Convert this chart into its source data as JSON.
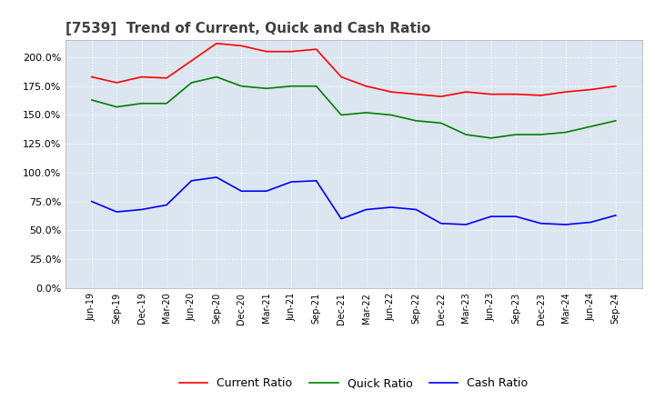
{
  "title": "[7539]  Trend of Current, Quick and Cash Ratio",
  "title_fontsize": 11,
  "ylim": [
    0.0,
    215.0
  ],
  "yticks": [
    0.0,
    25.0,
    50.0,
    75.0,
    100.0,
    125.0,
    150.0,
    175.0,
    200.0
  ],
  "background_color": "#ffffff",
  "plot_bg_color": "#dce6f0",
  "grid_color": "#ffffff",
  "legend_labels": [
    "Current Ratio",
    "Quick Ratio",
    "Cash Ratio"
  ],
  "legend_colors": [
    "#ff0000",
    "#008000",
    "#0000ff"
  ],
  "x_labels": [
    "Jun-19",
    "Sep-19",
    "Dec-19",
    "Mar-20",
    "Jun-20",
    "Sep-20",
    "Dec-20",
    "Mar-21",
    "Jun-21",
    "Sep-21",
    "Dec-21",
    "Mar-22",
    "Jun-22",
    "Sep-22",
    "Dec-22",
    "Mar-23",
    "Jun-23",
    "Sep-23",
    "Dec-23",
    "Mar-24",
    "Jun-24",
    "Sep-24"
  ],
  "current_ratio": [
    183,
    178,
    183,
    182,
    197,
    212,
    210,
    205,
    205,
    207,
    183,
    175,
    170,
    168,
    166,
    170,
    168,
    168,
    167,
    170,
    172,
    175
  ],
  "quick_ratio": [
    163,
    157,
    160,
    160,
    178,
    183,
    175,
    173,
    175,
    175,
    150,
    152,
    150,
    145,
    143,
    133,
    130,
    133,
    133,
    135,
    140,
    145
  ],
  "cash_ratio": [
    75,
    66,
    68,
    72,
    93,
    96,
    84,
    84,
    92,
    93,
    60,
    68,
    70,
    68,
    56,
    55,
    62,
    62,
    56,
    55,
    57,
    63
  ]
}
